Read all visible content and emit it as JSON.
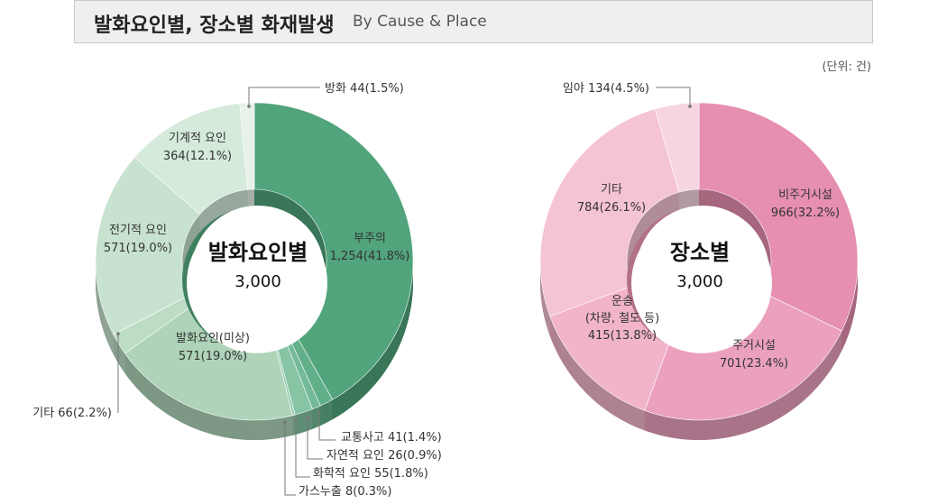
{
  "header": {
    "title": "발화요인별, 장소별 화재발생",
    "subtitle": "By Cause & Place"
  },
  "unit_note": "(단위: 건)",
  "chart_data": [
    {
      "type": "pie",
      "variant": "3d-donut",
      "center_title": "발화요인별",
      "center_value": "3,000",
      "slices": [
        {
          "label": "부주의",
          "value_text": "1,254(41.8%)",
          "value": 1254,
          "percent": 41.8,
          "color": "#51a47b"
        },
        {
          "label": "교통사고",
          "value_text": "41(1.4%)",
          "value": 41,
          "percent": 1.4,
          "color": "#62b08a"
        },
        {
          "label": "자연적 요인",
          "value_text": "26(0.9%)",
          "value": 26,
          "percent": 0.9,
          "color": "#74ba97"
        },
        {
          "label": "화학적 요인",
          "value_text": "55(1.8%)",
          "value": 55,
          "percent": 1.8,
          "color": "#86c4a4"
        },
        {
          "label": "가스누출",
          "value_text": "8(0.3%)",
          "value": 8,
          "percent": 0.3,
          "color": "#98ccb1"
        },
        {
          "label": "발화요인(미상)",
          "value_text": "571(19.0%)",
          "value": 571,
          "percent": 19.0,
          "color": "#aed3b8"
        },
        {
          "label": "기타",
          "value_text": "66(2.2%)",
          "value": 66,
          "percent": 2.2,
          "color": "#bcdcc4"
        },
        {
          "label": "전기적 요인",
          "value_text": "571(19.0%)",
          "value": 571,
          "percent": 19.0,
          "color": "#c7e2cf"
        },
        {
          "label": "기계적 요인",
          "value_text": "364(12.1%)",
          "value": 364,
          "percent": 12.1,
          "color": "#d5eadb"
        },
        {
          "label": "방화",
          "value_text": "44(1.5%)",
          "value": 44,
          "percent": 1.5,
          "color": "#e6f1e9"
        }
      ]
    },
    {
      "type": "pie",
      "variant": "3d-donut",
      "center_title": "장소별",
      "center_value": "3,000",
      "slices": [
        {
          "label": "비주거시설",
          "value_text": "966(32.2%)",
          "value": 966,
          "percent": 32.2,
          "color": "#e68fb0"
        },
        {
          "label": "주거시설",
          "value_text": "701(23.4%)",
          "value": 701,
          "percent": 23.4,
          "color": "#eba1be"
        },
        {
          "label": "운송 (차량, 철도 등)",
          "value_text": "415(13.8%)",
          "value": 415,
          "percent": 13.8,
          "color": "#f1b4cb"
        },
        {
          "label": "기타",
          "value_text": "784(26.1%)",
          "value": 784,
          "percent": 26.1,
          "color": "#f5c3d6"
        },
        {
          "label": "임야",
          "value_text": "134(4.5%)",
          "value": 134,
          "percent": 4.5,
          "color": "#f7d4e1"
        }
      ]
    }
  ]
}
